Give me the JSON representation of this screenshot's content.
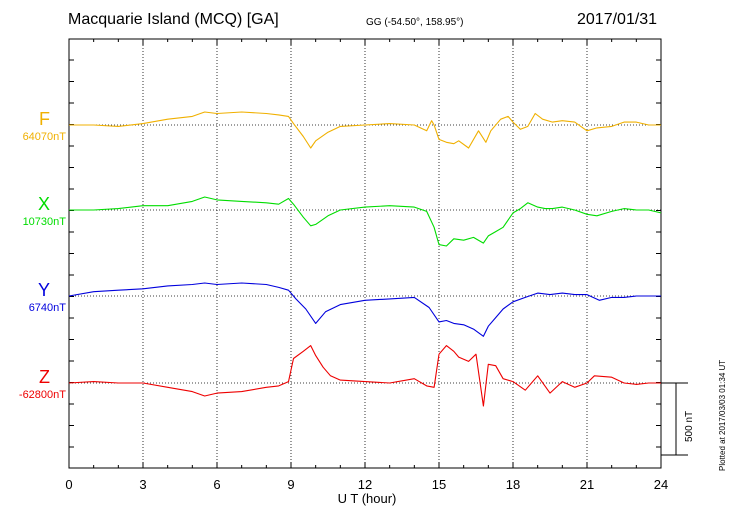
{
  "header": {
    "title": "Macquarie Island (MCQ)  [GA]",
    "coords": "GG (-54.50°, 158.95°)",
    "date": "2017/01/31"
  },
  "chart_data": {
    "type": "line",
    "title": "Macquarie Island (MCQ)  [GA]",
    "xlabel": "U T (hour)",
    "xlim": [
      0,
      24
    ],
    "xticks": [
      "0",
      "3",
      "6",
      "9",
      "12",
      "15",
      "18",
      "21",
      "24"
    ],
    "grid": true,
    "scale_bar": "500 nT",
    "series": [
      {
        "name": "F",
        "baseline": "64070nT",
        "color": "#f0b000",
        "x": [
          0,
          1,
          2,
          3,
          4,
          5,
          5.5,
          6,
          7,
          8,
          8.5,
          8.9,
          9.1,
          9.5,
          9.8,
          10,
          10.5,
          11,
          12,
          13,
          14,
          14.5,
          14.7,
          14.8,
          15,
          15.3,
          15.6,
          15.8,
          16.2,
          16.6,
          16.9,
          17.1,
          17.5,
          17.8,
          18,
          18.3,
          18.6,
          18.9,
          19.2,
          19.6,
          20,
          20.5,
          21,
          21.4,
          22,
          22.5,
          23,
          23.5,
          24
        ],
        "y": [
          0,
          0,
          -10,
          10,
          40,
          60,
          90,
          80,
          90,
          80,
          70,
          60,
          10,
          -80,
          -160,
          -110,
          -50,
          -10,
          0,
          10,
          0,
          -40,
          30,
          0,
          -100,
          -120,
          -130,
          -110,
          -160,
          -40,
          -120,
          -40,
          40,
          60,
          20,
          -30,
          -10,
          80,
          40,
          20,
          30,
          20,
          -40,
          -20,
          -10,
          20,
          20,
          0,
          0
        ]
      },
      {
        "name": "X",
        "baseline": "10730nT",
        "color": "#00dd00",
        "x": [
          0,
          1,
          2,
          3,
          4,
          5,
          5.5,
          6,
          7,
          8,
          8.5,
          8.9,
          9.1,
          9.5,
          9.8,
          10,
          10.5,
          11,
          12,
          13,
          14,
          14.5,
          14.8,
          15,
          15.3,
          15.6,
          16,
          16.4,
          16.8,
          17,
          17.3,
          17.6,
          18,
          18.3,
          18.6,
          19,
          19.3,
          19.6,
          20,
          20.5,
          21,
          21.4,
          22,
          22.5,
          23,
          23.5,
          24
        ],
        "y": [
          0,
          0,
          10,
          30,
          30,
          60,
          90,
          70,
          60,
          50,
          40,
          80,
          40,
          -50,
          -110,
          -100,
          -40,
          0,
          20,
          30,
          20,
          -10,
          -120,
          -240,
          -250,
          -200,
          -210,
          -190,
          -230,
          -180,
          -150,
          -120,
          -20,
          10,
          50,
          20,
          10,
          10,
          20,
          0,
          -30,
          -40,
          -10,
          10,
          0,
          0,
          -20
        ]
      },
      {
        "name": "Y",
        "baseline": "6740nT",
        "color": "#0000dd",
        "x": [
          0,
          1,
          2,
          3,
          4,
          5,
          5.5,
          6,
          7,
          8,
          8.5,
          8.9,
          9.2,
          9.6,
          10,
          10.4,
          11,
          12,
          13,
          14,
          14.6,
          15,
          15.3,
          15.6,
          16,
          16.4,
          16.8,
          17,
          17.3,
          17.6,
          18,
          18.5,
          19,
          19.5,
          20,
          20.5,
          21,
          21.5,
          22,
          22.5,
          23,
          23.5,
          24
        ],
        "y": [
          0,
          30,
          40,
          50,
          70,
          80,
          90,
          80,
          90,
          80,
          60,
          40,
          -20,
          -90,
          -190,
          -110,
          -60,
          -30,
          -20,
          -10,
          -80,
          -180,
          -170,
          -190,
          -200,
          -230,
          -280,
          -210,
          -150,
          -90,
          -40,
          -10,
          20,
          10,
          20,
          10,
          10,
          -30,
          -10,
          -10,
          0,
          0,
          0
        ]
      },
      {
        "name": "Z",
        "baseline": "-62800nT",
        "color": "#ee0000",
        "x": [
          0,
          1,
          2,
          3,
          4,
          5,
          5.5,
          6,
          7,
          8,
          8.5,
          8.9,
          9.1,
          9.5,
          9.8,
          10,
          10.3,
          10.6,
          11,
          12,
          13,
          14,
          14.5,
          14.8,
          15,
          15.3,
          15.6,
          15.8,
          16.2,
          16.5,
          16.8,
          17,
          17.3,
          17.6,
          18,
          18.5,
          19,
          19.5,
          20,
          20.5,
          21,
          21.3,
          22,
          22.5,
          23,
          23.5,
          24
        ],
        "y": [
          0,
          10,
          0,
          0,
          -30,
          -60,
          -90,
          -70,
          -60,
          -30,
          -20,
          10,
          170,
          220,
          260,
          190,
          110,
          50,
          20,
          10,
          0,
          30,
          -20,
          -30,
          200,
          260,
          220,
          180,
          150,
          200,
          -160,
          130,
          120,
          30,
          10,
          -50,
          50,
          -70,
          10,
          -30,
          0,
          50,
          40,
          0,
          -10,
          0,
          0
        ]
      }
    ]
  },
  "footer": {
    "plotted": "Plotted at 2017/03/03 01:34  UT"
  }
}
